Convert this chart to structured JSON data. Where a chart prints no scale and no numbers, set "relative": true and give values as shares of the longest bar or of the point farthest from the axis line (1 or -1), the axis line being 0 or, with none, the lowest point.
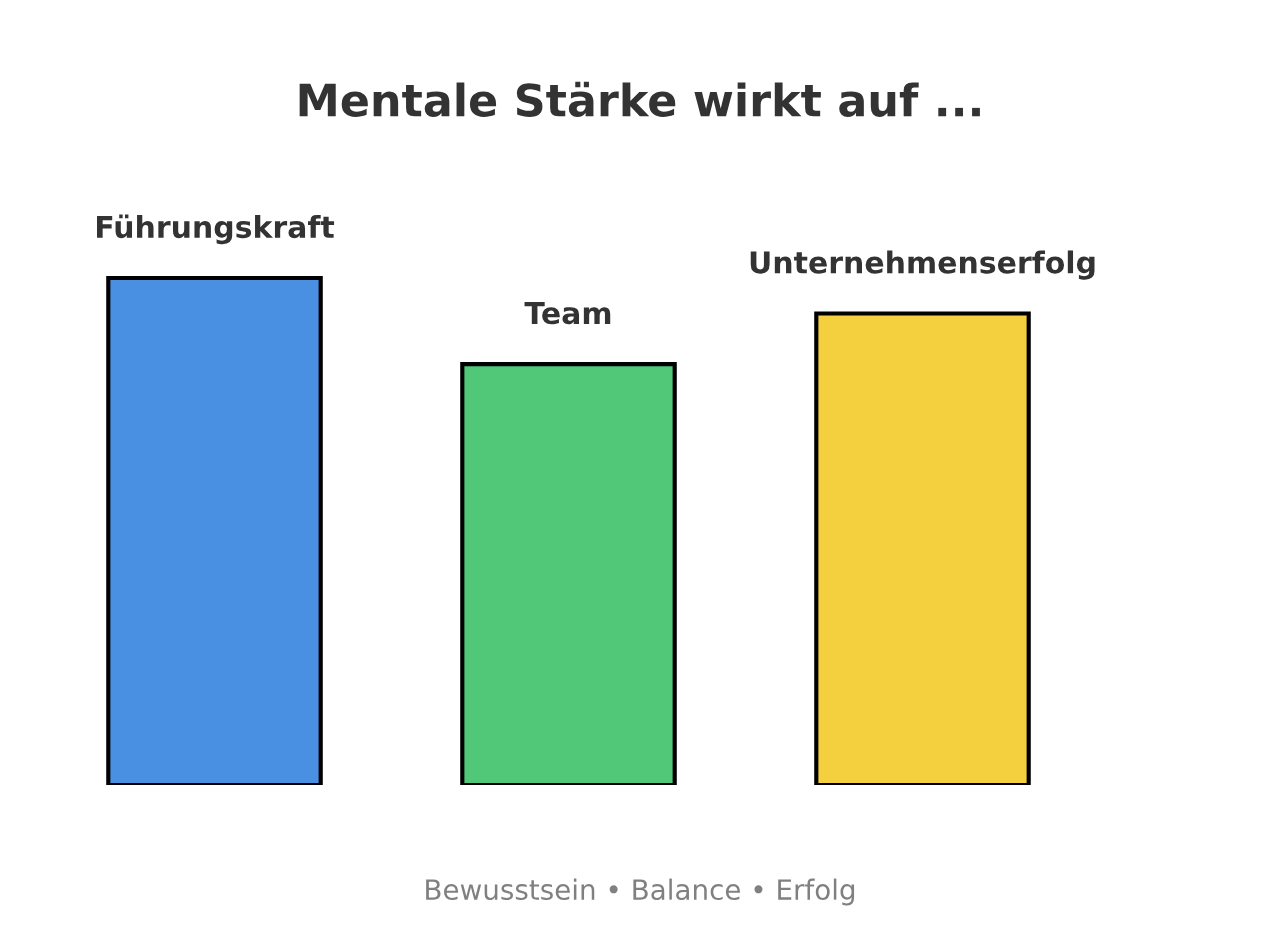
{
  "chart_data": {
    "type": "bar",
    "title": "Mentale Stärke wirkt auf ...",
    "categories": [
      "Führungskraft",
      "Team",
      "Unternehmenserfolg"
    ],
    "values": [
      1,
      0.83,
      0.93
    ],
    "colors": [
      "#4a90e2",
      "#50c878",
      "#f4d03f"
    ],
    "relative": true,
    "annotations": [
      "Bewusstsein • Balance • Erfolg"
    ]
  }
}
